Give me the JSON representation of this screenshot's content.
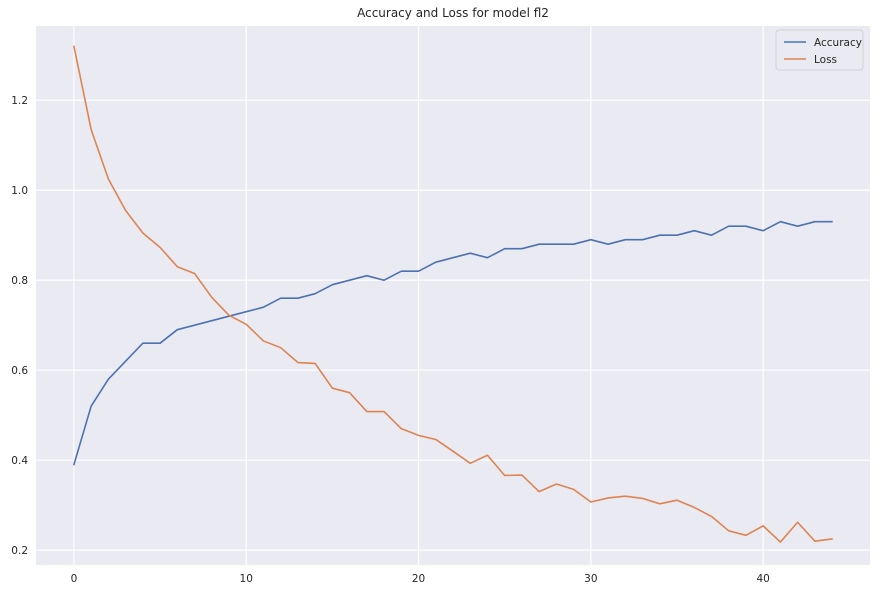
{
  "chart_data": {
    "type": "line",
    "title": "Accuracy and Loss for model fl2",
    "xlabel": "",
    "ylabel": "",
    "xlim": [
      -2.2,
      46.2
    ],
    "ylim": [
      0.167,
      1.365
    ],
    "x_ticks": [
      0,
      10,
      20,
      30,
      40
    ],
    "y_ticks": [
      0.2,
      0.4,
      0.6,
      0.8,
      1.0,
      1.2
    ],
    "x_tick_labels": [
      "0",
      "10",
      "20",
      "30",
      "40"
    ],
    "y_tick_labels": [
      "0.2",
      "0.4",
      "0.6",
      "0.8",
      "1.0",
      "1.2"
    ],
    "grid": true,
    "legend_position": "top-right",
    "background": "#eaeaf2",
    "x": [
      0,
      1,
      2,
      3,
      4,
      5,
      6,
      7,
      8,
      9,
      10,
      11,
      12,
      13,
      14,
      15,
      16,
      17,
      18,
      19,
      20,
      21,
      22,
      23,
      24,
      25,
      26,
      27,
      28,
      29,
      30,
      31,
      32,
      33,
      34,
      35,
      36,
      37,
      38,
      39,
      40,
      41,
      42,
      43,
      44
    ],
    "series": [
      {
        "name": "Accuracy",
        "color": "#4c72b0",
        "values": [
          0.39,
          0.52,
          0.58,
          0.62,
          0.66,
          0.66,
          0.69,
          0.7,
          0.71,
          0.72,
          0.73,
          0.74,
          0.76,
          0.76,
          0.77,
          0.79,
          0.8,
          0.81,
          0.8,
          0.82,
          0.82,
          0.84,
          0.85,
          0.86,
          0.85,
          0.87,
          0.87,
          0.88,
          0.88,
          0.88,
          0.89,
          0.88,
          0.89,
          0.89,
          0.9,
          0.9,
          0.91,
          0.9,
          0.92,
          0.92,
          0.91,
          0.93,
          0.92,
          0.93,
          0.93
        ]
      },
      {
        "name": "Loss",
        "color": "#dd8452",
        "values": [
          1.32,
          1.135,
          1.025,
          0.955,
          0.905,
          0.873,
          0.83,
          0.815,
          0.762,
          0.722,
          0.702,
          0.665,
          0.65,
          0.617,
          0.615,
          0.56,
          0.55,
          0.508,
          0.508,
          0.47,
          0.455,
          0.446,
          0.42,
          0.393,
          0.411,
          0.366,
          0.367,
          0.33,
          0.347,
          0.335,
          0.307,
          0.316,
          0.32,
          0.315,
          0.303,
          0.311,
          0.295,
          0.275,
          0.243,
          0.233,
          0.254,
          0.218,
          0.262,
          0.22,
          0.225
        ]
      }
    ]
  }
}
